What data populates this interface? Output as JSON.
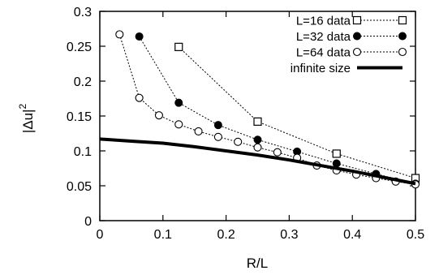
{
  "chart_data": {
    "type": "line",
    "xlabel": "R/L",
    "ylabel_base": "|Δu|",
    "ylabel_exp": "2",
    "xlim": [
      0,
      0.5
    ],
    "ylim": [
      0,
      0.3
    ],
    "xticks": [
      0,
      0.1,
      0.2,
      0.3,
      0.4,
      0.5
    ],
    "xtick_labels": [
      "0",
      "0.1",
      "0.2",
      "0.3",
      "0.4",
      "0.5"
    ],
    "yticks": [
      0,
      0.05,
      0.1,
      0.15,
      0.2,
      0.25,
      0.3
    ],
    "ytick_labels": [
      "0",
      "0.05",
      "0.1",
      "0.15",
      "0.2",
      "0.25",
      "0.3"
    ],
    "grid": false,
    "legend_position": "top-right",
    "series": [
      {
        "name": "L=16 data",
        "marker": "open-square",
        "line": "dotted",
        "x": [
          0.125,
          0.25,
          0.375,
          0.5
        ],
        "y": [
          0.249,
          0.142,
          0.096,
          0.061
        ]
      },
      {
        "name": "L=32 data",
        "marker": "filled-circle",
        "line": "dotted",
        "x": [
          0.0625,
          0.125,
          0.1875,
          0.25,
          0.3125,
          0.375,
          0.4375,
          0.5
        ],
        "y": [
          0.264,
          0.169,
          0.137,
          0.116,
          0.099,
          0.082,
          0.067,
          0.053
        ]
      },
      {
        "name": "L=64 data",
        "marker": "open-circle",
        "line": "dotted",
        "x": [
          0.03125,
          0.0625,
          0.09375,
          0.125,
          0.15625,
          0.1875,
          0.21875,
          0.25,
          0.28125,
          0.3125,
          0.34375,
          0.375,
          0.40625,
          0.4375,
          0.46875,
          0.5
        ],
        "y": [
          0.267,
          0.176,
          0.151,
          0.138,
          0.128,
          0.12,
          0.113,
          0.105,
          0.098,
          0.09,
          0.079,
          0.072,
          0.066,
          0.061,
          0.056,
          0.052
        ]
      },
      {
        "name": "infinite size",
        "marker": "none",
        "line": "solid-thick",
        "x": [
          0,
          0.05,
          0.1,
          0.15,
          0.2,
          0.25,
          0.3,
          0.35,
          0.4,
          0.45,
          0.5
        ],
        "y": [
          0.117,
          0.114,
          0.111,
          0.106,
          0.1,
          0.094,
          0.087,
          0.079,
          0.071,
          0.062,
          0.053
        ]
      }
    ]
  }
}
